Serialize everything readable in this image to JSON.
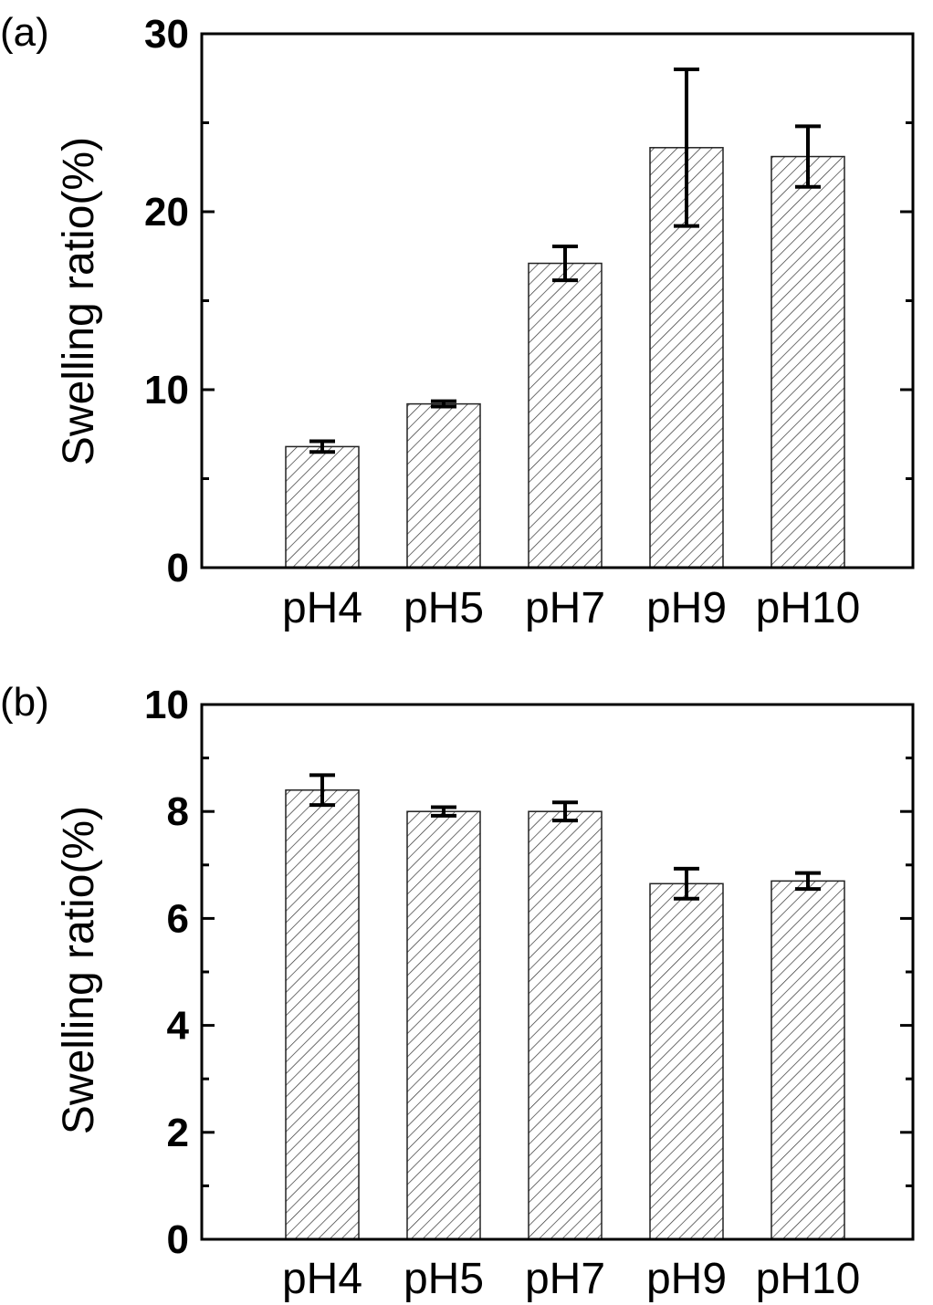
{
  "chart_data": [
    {
      "type": "bar",
      "panel_label": "(a)",
      "categories": [
        "pH4",
        "pH5",
        "pH7",
        "pH9",
        "pH10"
      ],
      "values": [
        6.8,
        9.2,
        17.1,
        23.6,
        23.1
      ],
      "errors": [
        0.3,
        0.15,
        0.95,
        4.4,
        1.7
      ],
      "ylabel": "Swelling ratio(%)",
      "xlabel": "",
      "ylim": [
        0,
        30
      ],
      "yticks": [
        0,
        10,
        20,
        30
      ],
      "ytick_labels": [
        "0",
        "10",
        "20",
        "30"
      ],
      "fill": "diagonal hatch",
      "grid": false
    },
    {
      "type": "bar",
      "panel_label": "(b)",
      "categories": [
        "pH4",
        "pH5",
        "pH7",
        "pH9",
        "pH10"
      ],
      "values": [
        8.4,
        8.0,
        8.0,
        6.65,
        6.7
      ],
      "errors": [
        0.28,
        0.08,
        0.17,
        0.28,
        0.15
      ],
      "ylabel": "Swelling ratio(%)",
      "xlabel": "",
      "ylim": [
        0,
        10
      ],
      "yticks": [
        0,
        2,
        4,
        6,
        8,
        10
      ],
      "ytick_labels": [
        "0",
        "2",
        "4",
        "6",
        "8",
        "10"
      ],
      "fill": "diagonal hatch",
      "grid": false
    }
  ]
}
